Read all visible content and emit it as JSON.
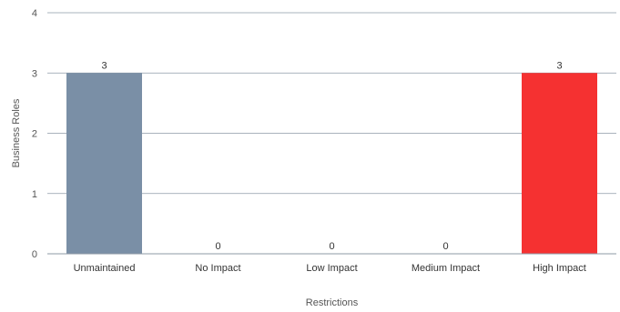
{
  "chart_data": {
    "type": "bar",
    "categories": [
      "Unmaintained",
      "No Impact",
      "Low Impact",
      "Medium Impact",
      "High Impact"
    ],
    "values": [
      3,
      0,
      0,
      0,
      3
    ],
    "colors": [
      "#7a8fa6",
      "#7a8fa6",
      "#7a8fa6",
      "#7a8fa6",
      "#f53131"
    ],
    "xlabel": "Restrictions",
    "ylabel": "Business Roles",
    "ylim": [
      0,
      4
    ],
    "yticks": [
      0,
      1,
      2,
      3,
      4
    ],
    "grid": true,
    "data_labels": true
  }
}
